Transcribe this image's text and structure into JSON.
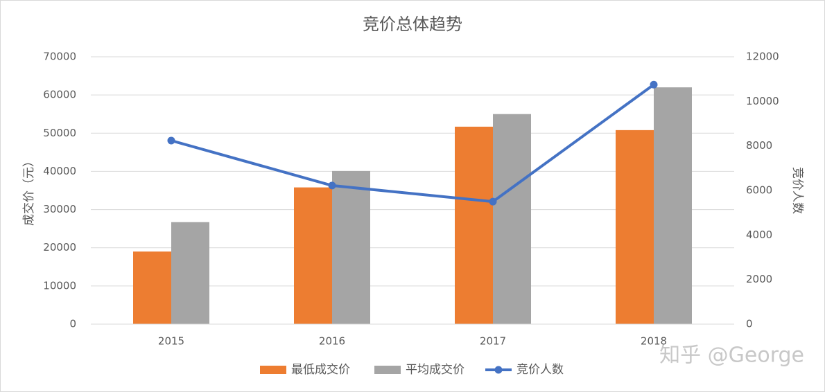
{
  "chart_data": {
    "type": "combo",
    "title": "竞价总体趋势",
    "categories": [
      "2015",
      "2016",
      "2017",
      "2018"
    ],
    "series": [
      {
        "name": "最低成交价",
        "type": "bar",
        "color": "#ed7d31",
        "values": [
          19000,
          35800,
          51700,
          50800
        ]
      },
      {
        "name": "平均成交价",
        "type": "bar",
        "color": "#a5a5a5",
        "values": [
          26700,
          40100,
          55000,
          62000
        ]
      },
      {
        "name": "竞价人数",
        "type": "line",
        "axis": "y2",
        "color": "#4472c4",
        "values": [
          8240,
          6220,
          5500,
          10750
        ]
      }
    ],
    "y_label": "成交价（元）",
    "y2_label": "竞价人数",
    "ylim": [
      0,
      70000
    ],
    "yticks": [
      0,
      10000,
      20000,
      30000,
      40000,
      50000,
      60000,
      70000
    ],
    "y2lim": [
      0,
      12000
    ],
    "y2ticks": [
      0,
      2000,
      4000,
      6000,
      8000,
      10000,
      12000
    ],
    "grid": true,
    "legend": "bottom",
    "watermark": "知乎 @George"
  }
}
